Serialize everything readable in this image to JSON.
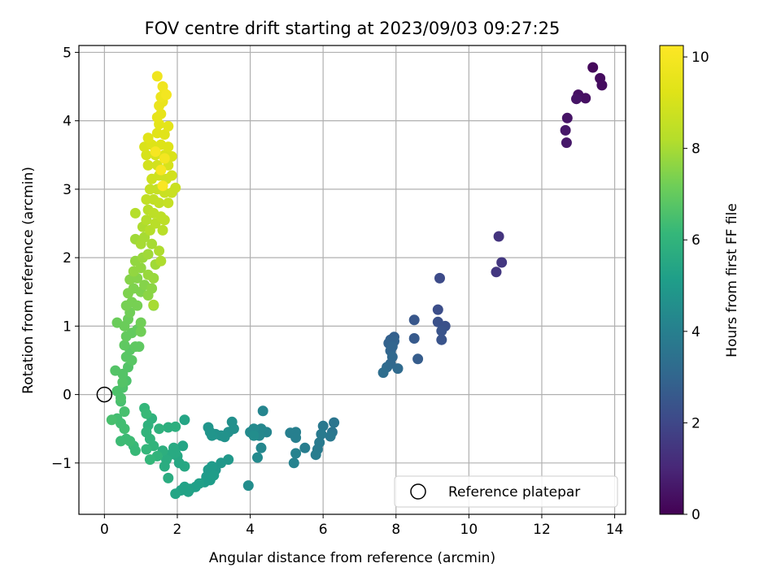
{
  "chart_data": {
    "type": "scatter",
    "title": "FOV centre drift starting at 2023/09/03 09:27:25",
    "xlabel": "Angular distance from reference (arcmin)",
    "ylabel": "Rotation from reference (arcmin)",
    "xlim": [
      -0.7,
      14.3
    ],
    "ylim": [
      -1.75,
      5.1
    ],
    "xticks": [
      0,
      2,
      4,
      6,
      8,
      10,
      12,
      14
    ],
    "xtick_labels": [
      "0",
      "2",
      "4",
      "6",
      "8",
      "10",
      "12",
      "14"
    ],
    "yticks": [
      -1,
      0,
      1,
      2,
      3,
      4,
      5
    ],
    "ytick_labels": [
      "−1",
      "0",
      "1",
      "2",
      "3",
      "4",
      "5"
    ],
    "grid": true,
    "colormap": "viridis",
    "colorbar": {
      "label": "Hours from first FF file",
      "range": [
        0,
        10.25
      ],
      "ticks": [
        0,
        2,
        4,
        6,
        8,
        10
      ],
      "tick_labels": [
        "0",
        "2",
        "4",
        "6",
        "8",
        "10"
      ]
    },
    "legend": {
      "placement": "lower-right",
      "entries": [
        {
          "label": "Reference platepar",
          "marker": "open-circle"
        }
      ]
    },
    "reference_point": {
      "x": 0,
      "y": 0
    },
    "points": [
      {
        "x": 13.4,
        "y": 4.78,
        "h": 0.2
      },
      {
        "x": 13.6,
        "y": 4.62,
        "h": 0.3
      },
      {
        "x": 13.65,
        "y": 4.52,
        "h": 0.3
      },
      {
        "x": 13.0,
        "y": 4.38,
        "h": 0.4
      },
      {
        "x": 13.2,
        "y": 4.33,
        "h": 0.4
      },
      {
        "x": 12.95,
        "y": 4.32,
        "h": 0.5
      },
      {
        "x": 12.7,
        "y": 4.04,
        "h": 0.5
      },
      {
        "x": 12.65,
        "y": 3.86,
        "h": 0.6
      },
      {
        "x": 12.68,
        "y": 3.68,
        "h": 0.6
      },
      {
        "x": 10.82,
        "y": 2.31,
        "h": 1.4
      },
      {
        "x": 10.9,
        "y": 1.93,
        "h": 1.5
      },
      {
        "x": 10.75,
        "y": 1.79,
        "h": 1.5
      },
      {
        "x": 9.2,
        "y": 1.7,
        "h": 2.1
      },
      {
        "x": 9.15,
        "y": 1.24,
        "h": 2.2
      },
      {
        "x": 9.15,
        "y": 1.06,
        "h": 2.3
      },
      {
        "x": 9.35,
        "y": 1.0,
        "h": 2.3
      },
      {
        "x": 9.25,
        "y": 0.93,
        "h": 2.4
      },
      {
        "x": 9.25,
        "y": 0.8,
        "h": 2.4
      },
      {
        "x": 8.5,
        "y": 1.09,
        "h": 2.5
      },
      {
        "x": 8.5,
        "y": 0.82,
        "h": 2.6
      },
      {
        "x": 8.6,
        "y": 0.52,
        "h": 2.7
      },
      {
        "x": 7.95,
        "y": 0.84,
        "h": 2.8
      },
      {
        "x": 7.85,
        "y": 0.8,
        "h": 2.8
      },
      {
        "x": 7.95,
        "y": 0.78,
        "h": 2.9
      },
      {
        "x": 7.8,
        "y": 0.75,
        "h": 2.9
      },
      {
        "x": 7.9,
        "y": 0.7,
        "h": 3.0
      },
      {
        "x": 7.85,
        "y": 0.64,
        "h": 3.0
      },
      {
        "x": 7.9,
        "y": 0.55,
        "h": 3.1
      },
      {
        "x": 7.85,
        "y": 0.45,
        "h": 3.1
      },
      {
        "x": 8.05,
        "y": 0.38,
        "h": 3.2
      },
      {
        "x": 7.75,
        "y": 0.4,
        "h": 3.2
      },
      {
        "x": 7.65,
        "y": 0.32,
        "h": 3.3
      },
      {
        "x": 6.3,
        "y": -0.41,
        "h": 3.6
      },
      {
        "x": 6.25,
        "y": -0.55,
        "h": 3.6
      },
      {
        "x": 6.2,
        "y": -0.61,
        "h": 3.7
      },
      {
        "x": 6.0,
        "y": -0.46,
        "h": 3.7
      },
      {
        "x": 5.95,
        "y": -0.58,
        "h": 3.8
      },
      {
        "x": 5.9,
        "y": -0.7,
        "h": 3.8
      },
      {
        "x": 5.85,
        "y": -0.8,
        "h": 3.8
      },
      {
        "x": 5.8,
        "y": -0.88,
        "h": 3.9
      },
      {
        "x": 5.5,
        "y": -0.78,
        "h": 3.9
      },
      {
        "x": 5.25,
        "y": -0.55,
        "h": 4.0
      },
      {
        "x": 5.1,
        "y": -0.56,
        "h": 4.0
      },
      {
        "x": 5.25,
        "y": -0.63,
        "h": 4.0
      },
      {
        "x": 5.25,
        "y": -0.86,
        "h": 4.1
      },
      {
        "x": 5.2,
        "y": -1.0,
        "h": 4.1
      },
      {
        "x": 4.45,
        "y": -0.55,
        "h": 4.2
      },
      {
        "x": 4.35,
        "y": -0.24,
        "h": 4.2
      },
      {
        "x": 4.3,
        "y": -0.5,
        "h": 4.3
      },
      {
        "x": 4.25,
        "y": -0.6,
        "h": 4.3
      },
      {
        "x": 4.3,
        "y": -0.78,
        "h": 4.3
      },
      {
        "x": 4.2,
        "y": -0.92,
        "h": 4.4
      },
      {
        "x": 4.1,
        "y": -0.5,
        "h": 4.4
      },
      {
        "x": 4.0,
        "y": -0.55,
        "h": 4.4
      },
      {
        "x": 4.1,
        "y": -0.6,
        "h": 4.5
      },
      {
        "x": 3.95,
        "y": -1.33,
        "h": 4.5
      },
      {
        "x": 3.55,
        "y": -0.5,
        "h": 4.6
      },
      {
        "x": 3.5,
        "y": -0.4,
        "h": 4.6
      },
      {
        "x": 3.4,
        "y": -0.55,
        "h": 4.6
      },
      {
        "x": 3.3,
        "y": -0.62,
        "h": 4.7
      },
      {
        "x": 3.2,
        "y": -0.6,
        "h": 4.7
      },
      {
        "x": 3.05,
        "y": -0.58,
        "h": 4.7
      },
      {
        "x": 2.95,
        "y": -0.6,
        "h": 4.8
      },
      {
        "x": 2.85,
        "y": -0.48,
        "h": 4.8
      },
      {
        "x": 2.9,
        "y": -0.55,
        "h": 4.8
      },
      {
        "x": 3.4,
        "y": -0.95,
        "h": 4.9
      },
      {
        "x": 3.2,
        "y": -1.0,
        "h": 4.9
      },
      {
        "x": 3.05,
        "y": -1.1,
        "h": 4.9
      },
      {
        "x": 2.95,
        "y": -1.05,
        "h": 5.0
      },
      {
        "x": 2.85,
        "y": -1.1,
        "h": 5.0
      },
      {
        "x": 2.8,
        "y": -1.2,
        "h": 5.0
      },
      {
        "x": 2.9,
        "y": -1.25,
        "h": 5.1
      },
      {
        "x": 3.0,
        "y": -1.18,
        "h": 5.1
      },
      {
        "x": 2.75,
        "y": -1.28,
        "h": 5.1
      },
      {
        "x": 2.6,
        "y": -1.3,
        "h": 5.2
      },
      {
        "x": 2.5,
        "y": -1.35,
        "h": 5.2
      },
      {
        "x": 2.35,
        "y": -1.38,
        "h": 5.2
      },
      {
        "x": 2.3,
        "y": -1.42,
        "h": 5.3
      },
      {
        "x": 2.2,
        "y": -1.35,
        "h": 5.3
      },
      {
        "x": 2.1,
        "y": -1.4,
        "h": 5.3
      },
      {
        "x": 1.95,
        "y": -1.45,
        "h": 5.4
      },
      {
        "x": 2.2,
        "y": -0.37,
        "h": 5.4
      },
      {
        "x": 2.15,
        "y": -0.75,
        "h": 5.4
      },
      {
        "x": 2.2,
        "y": -1.05,
        "h": 5.5
      },
      {
        "x": 2.05,
        "y": -1.0,
        "h": 5.5
      },
      {
        "x": 2.0,
        "y": -0.9,
        "h": 5.5
      },
      {
        "x": 1.95,
        "y": -0.85,
        "h": 5.6
      },
      {
        "x": 1.9,
        "y": -0.78,
        "h": 5.6
      },
      {
        "x": 1.8,
        "y": -0.88,
        "h": 5.6
      },
      {
        "x": 1.7,
        "y": -0.95,
        "h": 5.7
      },
      {
        "x": 1.65,
        "y": -1.05,
        "h": 5.7
      },
      {
        "x": 1.75,
        "y": -1.22,
        "h": 5.7
      },
      {
        "x": 1.6,
        "y": -0.82,
        "h": 5.8
      },
      {
        "x": 1.95,
        "y": -0.47,
        "h": 5.8
      },
      {
        "x": 1.75,
        "y": -0.48,
        "h": 5.8
      },
      {
        "x": 1.5,
        "y": -0.5,
        "h": 5.9
      },
      {
        "x": 1.3,
        "y": -0.35,
        "h": 5.9
      },
      {
        "x": 1.2,
        "y": -0.45,
        "h": 5.9
      },
      {
        "x": 1.15,
        "y": -0.55,
        "h": 6.0
      },
      {
        "x": 1.25,
        "y": -0.65,
        "h": 6.0
      },
      {
        "x": 1.35,
        "y": -0.75,
        "h": 6.0
      },
      {
        "x": 1.45,
        "y": -0.9,
        "h": 6.0
      },
      {
        "x": 1.25,
        "y": -0.95,
        "h": 6.1
      },
      {
        "x": 1.15,
        "y": -0.8,
        "h": 6.1
      },
      {
        "x": 1.1,
        "y": -0.2,
        "h": 6.1
      },
      {
        "x": 1.15,
        "y": -0.28,
        "h": 6.2
      },
      {
        "x": 0.85,
        "y": -0.82,
        "h": 6.2
      },
      {
        "x": 0.8,
        "y": -0.75,
        "h": 6.2
      },
      {
        "x": 0.7,
        "y": -0.68,
        "h": 6.3
      },
      {
        "x": 0.6,
        "y": -0.65,
        "h": 6.3
      },
      {
        "x": 0.45,
        "y": -0.68,
        "h": 6.3
      },
      {
        "x": 0.55,
        "y": -0.5,
        "h": 6.4
      },
      {
        "x": 0.45,
        "y": -0.42,
        "h": 6.4
      },
      {
        "x": 0.35,
        "y": -0.35,
        "h": 6.4
      },
      {
        "x": 0.2,
        "y": -0.37,
        "h": 6.5
      },
      {
        "x": 0.55,
        "y": -0.25,
        "h": 6.5
      },
      {
        "x": 0.45,
        "y": -0.1,
        "h": 6.5
      },
      {
        "x": 0.35,
        "y": 0.05,
        "h": 6.6
      },
      {
        "x": 0.5,
        "y": 0.1,
        "h": 6.6
      },
      {
        "x": 0.6,
        "y": 0.2,
        "h": 6.6
      },
      {
        "x": 0.5,
        "y": 0.3,
        "h": 6.7
      },
      {
        "x": 0.3,
        "y": 0.35,
        "h": 6.7
      },
      {
        "x": 0.65,
        "y": 0.4,
        "h": 6.7
      },
      {
        "x": 0.6,
        "y": 0.55,
        "h": 6.8
      },
      {
        "x": 0.75,
        "y": 0.5,
        "h": 6.8
      },
      {
        "x": 0.7,
        "y": 0.65,
        "h": 6.8
      },
      {
        "x": 0.55,
        "y": 0.72,
        "h": 6.9
      },
      {
        "x": 0.85,
        "y": 0.7,
        "h": 6.9
      },
      {
        "x": 0.95,
        "y": 0.7,
        "h": 6.9
      },
      {
        "x": 0.6,
        "y": 0.85,
        "h": 7.0
      },
      {
        "x": 0.75,
        "y": 0.9,
        "h": 7.0
      },
      {
        "x": 0.9,
        "y": 0.95,
        "h": 7.0
      },
      {
        "x": 0.35,
        "y": 1.05,
        "h": 7.1
      },
      {
        "x": 0.55,
        "y": 1.0,
        "h": 7.1
      },
      {
        "x": 0.65,
        "y": 1.1,
        "h": 7.1
      },
      {
        "x": 1.0,
        "y": 0.92,
        "h": 7.2
      },
      {
        "x": 1.0,
        "y": 1.05,
        "h": 7.2
      },
      {
        "x": 0.7,
        "y": 1.2,
        "h": 7.2
      },
      {
        "x": 0.6,
        "y": 1.3,
        "h": 7.3
      },
      {
        "x": 0.75,
        "y": 1.35,
        "h": 7.3
      },
      {
        "x": 0.9,
        "y": 1.3,
        "h": 7.3
      },
      {
        "x": 0.65,
        "y": 1.48,
        "h": 7.4
      },
      {
        "x": 0.8,
        "y": 1.55,
        "h": 7.4
      },
      {
        "x": 1.0,
        "y": 1.5,
        "h": 7.4
      },
      {
        "x": 0.7,
        "y": 1.68,
        "h": 7.5
      },
      {
        "x": 0.9,
        "y": 1.7,
        "h": 7.5
      },
      {
        "x": 1.1,
        "y": 1.6,
        "h": 7.5
      },
      {
        "x": 1.2,
        "y": 1.45,
        "h": 7.6
      },
      {
        "x": 1.35,
        "y": 1.3,
        "h": 7.6
      },
      {
        "x": 1.3,
        "y": 1.55,
        "h": 7.6
      },
      {
        "x": 0.8,
        "y": 1.8,
        "h": 7.7
      },
      {
        "x": 1.0,
        "y": 1.85,
        "h": 7.7
      },
      {
        "x": 0.85,
        "y": 1.95,
        "h": 7.7
      },
      {
        "x": 1.2,
        "y": 1.75,
        "h": 7.8
      },
      {
        "x": 1.35,
        "y": 1.7,
        "h": 7.8
      },
      {
        "x": 1.05,
        "y": 2.0,
        "h": 7.8
      },
      {
        "x": 1.2,
        "y": 2.05,
        "h": 7.9
      },
      {
        "x": 1.4,
        "y": 1.9,
        "h": 7.9
      },
      {
        "x": 0.85,
        "y": 2.27,
        "h": 7.9
      },
      {
        "x": 1.0,
        "y": 2.2,
        "h": 8.0
      },
      {
        "x": 1.1,
        "y": 2.3,
        "h": 8.0
      },
      {
        "x": 1.3,
        "y": 2.2,
        "h": 8.0
      },
      {
        "x": 1.5,
        "y": 2.1,
        "h": 8.1
      },
      {
        "x": 1.55,
        "y": 1.95,
        "h": 8.1
      },
      {
        "x": 1.05,
        "y": 2.45,
        "h": 8.1
      },
      {
        "x": 1.25,
        "y": 2.4,
        "h": 8.2
      },
      {
        "x": 0.85,
        "y": 2.65,
        "h": 8.2
      },
      {
        "x": 1.15,
        "y": 2.55,
        "h": 8.2
      },
      {
        "x": 1.4,
        "y": 2.5,
        "h": 8.3
      },
      {
        "x": 1.6,
        "y": 2.4,
        "h": 8.3
      },
      {
        "x": 1.2,
        "y": 2.7,
        "h": 8.3
      },
      {
        "x": 1.35,
        "y": 2.65,
        "h": 8.4
      },
      {
        "x": 1.55,
        "y": 2.6,
        "h": 8.4
      },
      {
        "x": 1.65,
        "y": 2.55,
        "h": 8.4
      },
      {
        "x": 1.15,
        "y": 2.85,
        "h": 8.5
      },
      {
        "x": 1.35,
        "y": 2.85,
        "h": 8.5
      },
      {
        "x": 1.5,
        "y": 2.8,
        "h": 8.5
      },
      {
        "x": 1.75,
        "y": 2.8,
        "h": 8.6
      },
      {
        "x": 1.25,
        "y": 3.0,
        "h": 8.6
      },
      {
        "x": 1.45,
        "y": 3.0,
        "h": 8.6
      },
      {
        "x": 1.65,
        "y": 2.95,
        "h": 8.7
      },
      {
        "x": 1.85,
        "y": 2.95,
        "h": 8.7
      },
      {
        "x": 1.95,
        "y": 3.02,
        "h": 8.7
      },
      {
        "x": 1.3,
        "y": 3.15,
        "h": 8.8
      },
      {
        "x": 1.5,
        "y": 3.2,
        "h": 8.8
      },
      {
        "x": 1.7,
        "y": 3.15,
        "h": 8.8
      },
      {
        "x": 1.85,
        "y": 3.2,
        "h": 8.9
      },
      {
        "x": 1.2,
        "y": 3.35,
        "h": 8.9
      },
      {
        "x": 1.45,
        "y": 3.35,
        "h": 8.9
      },
      {
        "x": 1.75,
        "y": 3.35,
        "h": 9.0
      },
      {
        "x": 1.15,
        "y": 3.5,
        "h": 9.0
      },
      {
        "x": 1.4,
        "y": 3.5,
        "h": 9.0
      },
      {
        "x": 1.65,
        "y": 3.5,
        "h": 9.1
      },
      {
        "x": 1.85,
        "y": 3.48,
        "h": 9.1
      },
      {
        "x": 1.1,
        "y": 3.62,
        "h": 9.1
      },
      {
        "x": 1.3,
        "y": 3.65,
        "h": 9.2
      },
      {
        "x": 1.55,
        "y": 3.65,
        "h": 9.2
      },
      {
        "x": 1.75,
        "y": 3.62,
        "h": 9.2
      },
      {
        "x": 1.2,
        "y": 3.75,
        "h": 9.3
      },
      {
        "x": 1.45,
        "y": 3.82,
        "h": 9.3
      },
      {
        "x": 1.65,
        "y": 3.8,
        "h": 9.3
      },
      {
        "x": 1.75,
        "y": 3.92,
        "h": 9.4
      },
      {
        "x": 1.5,
        "y": 3.95,
        "h": 9.4
      },
      {
        "x": 1.45,
        "y": 4.05,
        "h": 9.5
      },
      {
        "x": 1.55,
        "y": 4.1,
        "h": 9.5
      },
      {
        "x": 1.5,
        "y": 4.22,
        "h": 9.6
      },
      {
        "x": 1.6,
        "y": 4.28,
        "h": 9.6
      },
      {
        "x": 1.55,
        "y": 4.35,
        "h": 9.7
      },
      {
        "x": 1.65,
        "y": 4.4,
        "h": 9.7
      },
      {
        "x": 1.6,
        "y": 4.5,
        "h": 9.8
      },
      {
        "x": 1.45,
        "y": 4.65,
        "h": 9.8
      },
      {
        "x": 1.7,
        "y": 4.38,
        "h": 9.9
      },
      {
        "x": 1.65,
        "y": 3.45,
        "h": 9.9
      },
      {
        "x": 1.55,
        "y": 3.28,
        "h": 10.0
      },
      {
        "x": 1.4,
        "y": 3.55,
        "h": 10.0
      },
      {
        "x": 1.6,
        "y": 3.05,
        "h": 10.1
      },
      {
        "x": 1.35,
        "y": 1.31,
        "h": 8.0
      },
      {
        "x": 0.45,
        "y": -0.05,
        "h": 6.6
      },
      {
        "x": 0.5,
        "y": 0.18,
        "h": 6.7
      }
    ]
  }
}
